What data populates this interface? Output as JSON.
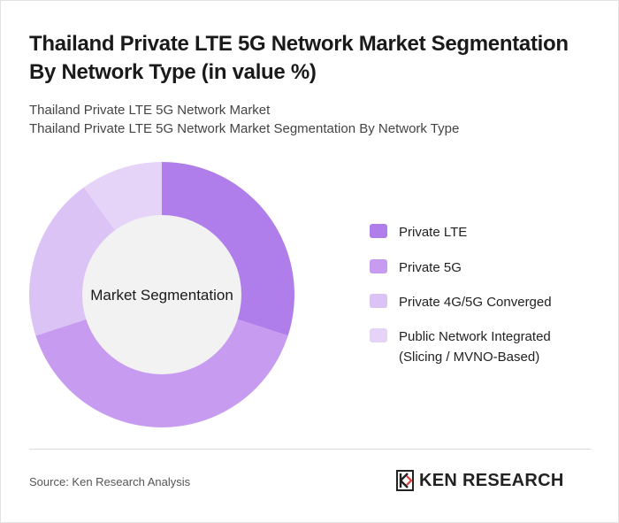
{
  "title": "Thailand Private LTE 5G Network Market Segmentation By Network Type (in value %)",
  "subtitle_lines": [
    "Thailand Private LTE 5G Network Market",
    "Thailand Private LTE 5G Network Market Segmentation By Network Type"
  ],
  "center_label": "Market Segmentation",
  "chart_data": {
    "type": "pie",
    "donut": true,
    "title": "Thailand Private LTE 5G Network Market Segmentation By Network Type (in value %)",
    "categories": [
      "Private LTE",
      "Private 5G",
      "Private 4G/5G Converged",
      "Public Network Integrated (Slicing / MVNO-Based)"
    ],
    "values": [
      30,
      40,
      20,
      10
    ],
    "colors": [
      "#b07eea",
      "#c79cf0",
      "#dcc3f5",
      "#e6d4f8"
    ],
    "center_label": "Market Segmentation",
    "legend_position": "right"
  },
  "legend": [
    {
      "label": "Private LTE",
      "color": "#b07eea"
    },
    {
      "label": "Private 5G",
      "color": "#c79cf0"
    },
    {
      "label": "Private 4G/5G Converged",
      "color": "#dcc3f5"
    },
    {
      "label": "Public Network Integrated\n(Slicing / MVNO-Based)",
      "color": "#e6d4f8"
    }
  ],
  "source": "Source: Ken Research Analysis",
  "logo": {
    "text": "KEN RESEARCH"
  }
}
